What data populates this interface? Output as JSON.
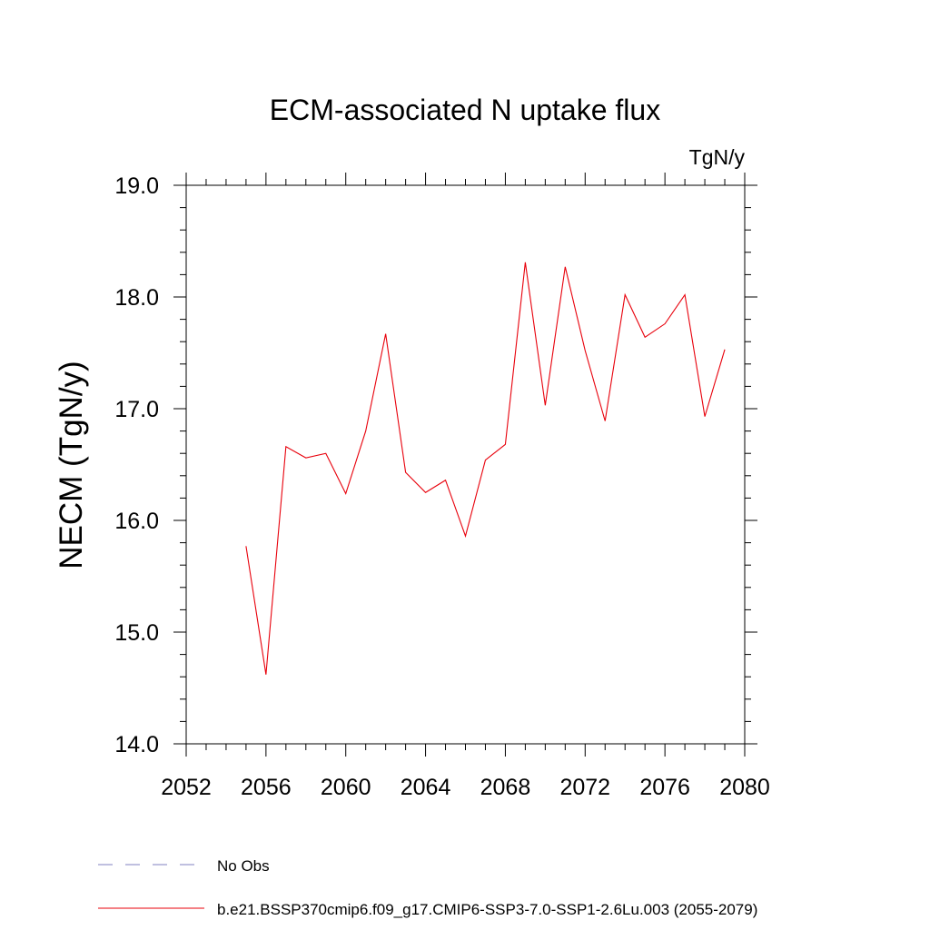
{
  "chart_data": {
    "type": "line",
    "title": "ECM-associated N uptake flux",
    "units_label": "TgN/y",
    "ylabel": "NECM  (TgN/y)",
    "xlabel": "",
    "xlim": [
      2052,
      2080
    ],
    "ylim": [
      14.0,
      19.0
    ],
    "x_ticks": [
      "2052",
      "2056",
      "2060",
      "2064",
      "2068",
      "2072",
      "2076",
      "2080"
    ],
    "y_ticks": [
      "14.0",
      "15.0",
      "16.0",
      "17.0",
      "18.0",
      "19.0"
    ],
    "grid": false,
    "series": [
      {
        "name": "b.e21.BSSP370cmip6.f09_g17.CMIP6-SSP3-7.0-SSP1-2.6Lu.003 (2055-2079)",
        "color": "#e8000b",
        "style": "solid",
        "x": [
          2055,
          2056,
          2057,
          2058,
          2059,
          2060,
          2061,
          2062,
          2063,
          2064,
          2065,
          2066,
          2067,
          2068,
          2069,
          2070,
          2071,
          2072,
          2073,
          2074,
          2075,
          2076,
          2077,
          2078,
          2079
        ],
        "y": [
          15.77,
          14.62,
          16.66,
          16.56,
          16.6,
          16.24,
          16.8,
          17.67,
          16.43,
          16.25,
          16.36,
          15.86,
          16.54,
          16.68,
          18.31,
          17.03,
          18.27,
          17.52,
          16.89,
          18.02,
          17.64,
          17.76,
          18.02,
          16.93,
          17.53
        ]
      }
    ],
    "legend": {
      "placement": "bottom-left",
      "entries": [
        {
          "label": "No Obs",
          "color": "#8080c0",
          "style": "dashed"
        },
        {
          "label": "b.e21.BSSP370cmip6.f09_g17.CMIP6-SSP3-7.0-SSP1-2.6Lu.003 (2055-2079)",
          "color": "#e8000b",
          "style": "solid"
        }
      ]
    }
  }
}
